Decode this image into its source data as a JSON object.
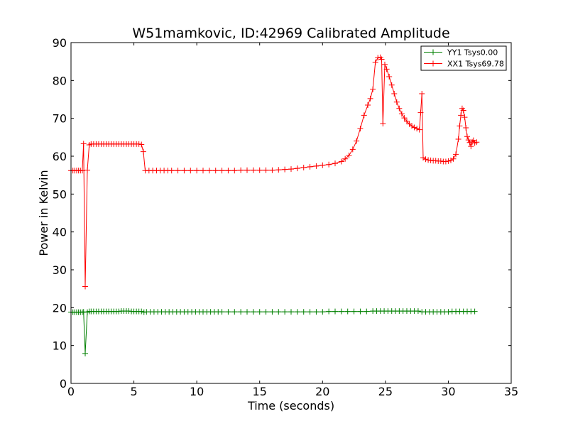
{
  "chart_data": {
    "type": "line",
    "title": "W51mamkovic, ID:42969 Calibrated Amplitude",
    "xlabel": "Time (seconds)",
    "ylabel": "Power in Kelvin",
    "xlim": [
      0,
      35
    ],
    "ylim": [
      0,
      90
    ],
    "xticks": [
      0,
      5,
      10,
      15,
      20,
      25,
      30,
      35
    ],
    "yticks": [
      0,
      10,
      20,
      30,
      40,
      50,
      60,
      70,
      80,
      90
    ],
    "grid": false,
    "legend_position": "top-right",
    "series": [
      {
        "name": "YY1 Tsys0.00",
        "color": "#008000",
        "marker": "+",
        "x": [
          0,
          0.15,
          0.3,
          0.45,
          0.6,
          0.75,
          0.9,
          1.0,
          1.13,
          1.3,
          1.45,
          1.6,
          1.8,
          2.0,
          2.2,
          2.4,
          2.6,
          2.8,
          3.0,
          3.2,
          3.4,
          3.6,
          3.8,
          4.0,
          4.2,
          4.4,
          4.6,
          4.8,
          5.0,
          5.2,
          5.4,
          5.6,
          5.8,
          6.0,
          6.3,
          6.6,
          6.9,
          7.2,
          7.5,
          7.8,
          8.1,
          8.4,
          8.7,
          9.0,
          9.3,
          9.6,
          9.9,
          10.2,
          10.5,
          10.8,
          11.1,
          11.4,
          11.7,
          12.0,
          12.5,
          13.0,
          13.5,
          14.0,
          14.5,
          15.0,
          15.5,
          16.0,
          16.5,
          17.0,
          17.5,
          18.0,
          18.5,
          19.0,
          19.5,
          20.0,
          20.5,
          21.0,
          21.5,
          22.0,
          22.5,
          23.0,
          23.5,
          24.0,
          24.3,
          24.6,
          24.9,
          25.2,
          25.5,
          25.8,
          26.1,
          26.4,
          26.7,
          27.0,
          27.3,
          27.6,
          27.9,
          28.2,
          28.5,
          28.8,
          29.1,
          29.4,
          29.7,
          30.0,
          30.3,
          30.6,
          30.9,
          31.2,
          31.5,
          31.8,
          32.1
        ],
        "y": [
          18.8,
          18.8,
          18.8,
          18.8,
          18.8,
          18.8,
          18.8,
          18.9,
          7.9,
          18.8,
          19.0,
          19.0,
          19.0,
          19.0,
          19.0,
          19.0,
          19.0,
          19.0,
          19.0,
          19.0,
          19.0,
          19.0,
          19.0,
          19.1,
          19.1,
          19.1,
          19.1,
          19.0,
          19.0,
          19.0,
          19.0,
          19.0,
          18.8,
          18.9,
          18.9,
          18.9,
          18.9,
          18.9,
          18.9,
          18.9,
          18.9,
          18.9,
          18.9,
          18.9,
          18.9,
          18.9,
          18.9,
          18.9,
          18.9,
          18.9,
          18.9,
          18.9,
          18.9,
          18.9,
          18.9,
          18.9,
          18.9,
          18.9,
          18.9,
          18.9,
          18.9,
          18.9,
          18.9,
          18.9,
          18.9,
          18.9,
          18.9,
          18.9,
          18.9,
          18.9,
          19.0,
          19.0,
          19.0,
          19.0,
          19.0,
          19.0,
          19.0,
          19.1,
          19.1,
          19.1,
          19.1,
          19.1,
          19.1,
          19.1,
          19.1,
          19.1,
          19.1,
          19.1,
          19.1,
          19.1,
          18.9,
          18.9,
          18.9,
          18.9,
          18.9,
          18.9,
          18.9,
          18.9,
          19.0,
          19.0,
          19.0,
          19.0,
          19.0,
          19.0,
          19.0
        ]
      },
      {
        "name": "XX1 Tsys69.78",
        "color": "#ff0000",
        "marker": "+",
        "x": [
          0,
          0.15,
          0.3,
          0.45,
          0.6,
          0.75,
          0.9,
          1.0,
          1.13,
          1.3,
          1.45,
          1.6,
          1.8,
          2.0,
          2.2,
          2.4,
          2.6,
          2.8,
          3.0,
          3.2,
          3.4,
          3.6,
          3.8,
          4.0,
          4.2,
          4.4,
          4.6,
          4.8,
          5.0,
          5.2,
          5.4,
          5.6,
          5.75,
          5.9,
          6.2,
          6.5,
          6.8,
          7.1,
          7.4,
          7.7,
          8.0,
          8.5,
          9.0,
          9.5,
          10.0,
          10.5,
          11.0,
          11.5,
          12.0,
          12.5,
          13.0,
          13.5,
          14.0,
          14.5,
          15.0,
          15.5,
          16.0,
          16.5,
          17.0,
          17.5,
          18.0,
          18.5,
          19.0,
          19.5,
          20.0,
          20.5,
          21.0,
          21.5,
          21.8,
          22.1,
          22.4,
          22.7,
          23.0,
          23.3,
          23.6,
          23.8,
          24.0,
          24.2,
          24.4,
          24.6,
          24.7,
          24.8,
          24.95,
          25.1,
          25.3,
          25.5,
          25.7,
          25.9,
          26.1,
          26.3,
          26.5,
          26.7,
          26.9,
          27.1,
          27.3,
          27.5,
          27.7,
          27.8,
          27.9,
          28.0,
          28.2,
          28.4,
          28.6,
          28.8,
          29.0,
          29.2,
          29.4,
          29.6,
          29.8,
          30.0,
          30.2,
          30.4,
          30.6,
          30.8,
          30.9,
          31.0,
          31.1,
          31.2,
          31.3,
          31.4,
          31.5,
          31.6,
          31.7,
          31.8,
          31.9,
          32.0,
          32.1,
          32.25
        ],
        "y": [
          56.2,
          56.2,
          56.2,
          56.2,
          56.2,
          56.2,
          56.2,
          63.3,
          25.6,
          56.3,
          63.0,
          63.2,
          63.2,
          63.2,
          63.2,
          63.2,
          63.2,
          63.2,
          63.2,
          63.2,
          63.2,
          63.2,
          63.2,
          63.2,
          63.2,
          63.2,
          63.2,
          63.2,
          63.2,
          63.2,
          63.2,
          63.1,
          61.2,
          56.2,
          56.2,
          56.2,
          56.2,
          56.2,
          56.2,
          56.2,
          56.2,
          56.2,
          56.2,
          56.2,
          56.2,
          56.2,
          56.2,
          56.2,
          56.2,
          56.2,
          56.2,
          56.3,
          56.3,
          56.3,
          56.3,
          56.3,
          56.3,
          56.4,
          56.5,
          56.6,
          56.8,
          57.0,
          57.2,
          57.4,
          57.6,
          57.8,
          58.1,
          58.6,
          59.3,
          60.2,
          61.8,
          64.0,
          67.3,
          70.8,
          73.5,
          75.2,
          77.7,
          84.8,
          86.0,
          86.1,
          85.6,
          68.6,
          84.2,
          83.0,
          81.0,
          78.8,
          76.5,
          74.3,
          72.6,
          71.2,
          70.1,
          69.2,
          68.5,
          68.0,
          67.6,
          67.3,
          67.0,
          71.5,
          76.5,
          59.6,
          59.2,
          59.0,
          58.9,
          58.8,
          58.8,
          58.7,
          58.7,
          58.6,
          58.6,
          58.7,
          58.9,
          59.3,
          60.5,
          64.5,
          68.0,
          70.8,
          72.6,
          72.1,
          70.3,
          67.5,
          65.2,
          64.3,
          63.6,
          62.6,
          63.8,
          64.2,
          63.5,
          63.7
        ]
      }
    ]
  }
}
